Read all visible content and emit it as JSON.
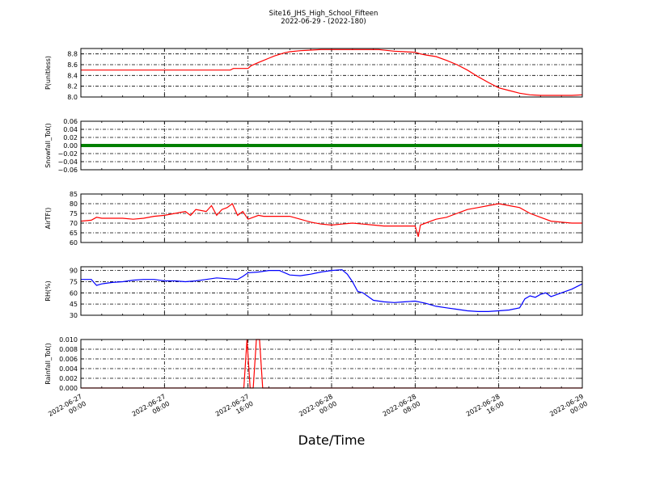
{
  "title_line1": "Site16_JHS_High_School_Fifteen",
  "title_line2": "2022-06-29 - (2022-180)",
  "xlabel": "Date/Time",
  "x_ticks": [
    "2022-06-27\n00:00",
    "2022-06-27\n08:00",
    "2022-06-27\n16:00",
    "2022-06-28\n00:00",
    "2022-06-28\n08:00",
    "2022-06-28\n16:00",
    "2022-06-29\n00:00"
  ],
  "chart_data": [
    {
      "type": "line",
      "ylabel": "P(unitless)",
      "ylim": [
        8.0,
        8.9
      ],
      "yticks": [
        "8.0",
        "8.2",
        "8.4",
        "8.6",
        "8.8"
      ],
      "ytick_values": [
        8.0,
        8.2,
        8.4,
        8.6,
        8.8
      ],
      "color": "#ff0000",
      "grid": true,
      "x_hours": [
        0,
        14.3,
        14.6,
        16,
        16.3,
        17,
        17.5,
        18,
        18.5,
        19,
        19.5,
        20,
        21,
        22,
        23,
        24,
        25,
        26,
        27,
        28.5,
        30,
        31,
        32,
        32.5,
        33,
        34,
        35,
        36,
        37,
        38,
        39,
        40,
        41,
        42,
        43,
        44,
        45,
        46,
        47,
        48
      ],
      "values": [
        8.5,
        8.5,
        8.53,
        8.53,
        8.58,
        8.64,
        8.68,
        8.72,
        8.76,
        8.79,
        8.82,
        8.84,
        8.86,
        8.87,
        8.88,
        8.88,
        8.88,
        8.88,
        8.88,
        8.88,
        8.85,
        8.84,
        8.83,
        8.8,
        8.78,
        8.75,
        8.68,
        8.6,
        8.5,
        8.38,
        8.27,
        8.17,
        8.12,
        8.07,
        8.04,
        8.03,
        8.03,
        8.03,
        8.03,
        8.04
      ]
    },
    {
      "type": "line",
      "ylabel": "Snowfall_Tot()",
      "ylim": [
        -0.06,
        0.06
      ],
      "yticks": [
        "−0.06",
        "−0.04",
        "−0.02",
        "0.00",
        "0.02",
        "0.04",
        "0.06"
      ],
      "ytick_values": [
        -0.06,
        -0.04,
        -0.02,
        0.0,
        0.02,
        0.04,
        0.06
      ],
      "color": "#008000",
      "grid": true,
      "x_hours": [
        0,
        48
      ],
      "values": [
        0,
        0
      ]
    },
    {
      "type": "line",
      "ylabel": "AirTF()",
      "ylim": [
        60,
        85
      ],
      "yticks": [
        "60",
        "65",
        "70",
        "75",
        "80",
        "85"
      ],
      "ytick_values": [
        60,
        65,
        70,
        75,
        80,
        85
      ],
      "color": "#ff0000",
      "grid": true,
      "x_hours": [
        0,
        1,
        1.5,
        2,
        3,
        4,
        5,
        6,
        7,
        8,
        9,
        10,
        10.5,
        11,
        12,
        12.5,
        13,
        13.5,
        14,
        14.5,
        15,
        15.5,
        16,
        16.5,
        17,
        17.5,
        18,
        19,
        20,
        21,
        22,
        23,
        24,
        25,
        26,
        27,
        28,
        29,
        30,
        31,
        32,
        32.3,
        32.5,
        33,
        33.5,
        34,
        35,
        36,
        36.5,
        37,
        38,
        39,
        40,
        41,
        42,
        43,
        44,
        45,
        46,
        47,
        48
      ],
      "values": [
        71,
        71.5,
        73,
        72.5,
        72.5,
        72.5,
        72,
        72.5,
        73.5,
        74,
        75,
        76,
        74,
        77,
        76,
        79,
        74,
        77,
        78,
        80,
        74,
        76,
        72,
        73,
        74,
        73.5,
        73.5,
        73.5,
        73.5,
        72,
        70.5,
        69.5,
        69,
        69.5,
        70,
        69.5,
        69,
        68.5,
        68.5,
        68.5,
        68.5,
        63,
        69,
        70,
        71,
        72,
        73,
        75,
        76,
        77,
        78,
        79,
        80,
        79,
        78,
        75,
        73,
        71,
        70.5,
        70,
        70
      ]
    },
    {
      "type": "line",
      "ylabel": "RH(%)",
      "ylim": [
        30,
        95
      ],
      "yticks": [
        "30",
        "45",
        "60",
        "75",
        "90"
      ],
      "ytick_values": [
        30,
        45,
        60,
        75,
        90
      ],
      "color": "#0000ff",
      "grid": true,
      "x_hours": [
        0,
        1,
        1.5,
        2,
        3,
        4,
        5,
        6,
        7,
        8,
        9,
        10,
        11,
        12,
        13,
        14,
        15,
        15.5,
        16,
        17,
        18,
        19,
        20,
        21,
        22,
        23,
        24,
        25,
        25.5,
        26,
        26.5,
        27,
        28,
        29,
        30,
        31,
        32,
        33,
        34,
        35,
        36,
        37,
        38,
        39,
        40,
        41,
        42,
        42.5,
        43,
        43.5,
        44,
        44.5,
        45,
        46,
        47,
        48
      ],
      "values": [
        78,
        78,
        70,
        72,
        74,
        75,
        77,
        78,
        78,
        76,
        76,
        75,
        76,
        78,
        80,
        79,
        78,
        82,
        87,
        88,
        90,
        90,
        84,
        83,
        85,
        88,
        90,
        91,
        85,
        75,
        62,
        60,
        50,
        48,
        47,
        48,
        49,
        46,
        42,
        40,
        38,
        36,
        35,
        35,
        36,
        37,
        40,
        52,
        56,
        54,
        58,
        60,
        55,
        60,
        65,
        72
      ]
    },
    {
      "type": "line",
      "ylabel": "Rainfall_Tot()",
      "ylim": [
        0.0,
        0.01
      ],
      "yticks": [
        "0.000",
        "0.002",
        "0.004",
        "0.006",
        "0.008",
        "0.010"
      ],
      "ytick_values": [
        0.0,
        0.002,
        0.004,
        0.006,
        0.008,
        0.01
      ],
      "color": "#ff0000",
      "grid": true,
      "x_hours": [
        0,
        15.6,
        15.9,
        16.2,
        16.5,
        16.8,
        17.1,
        17.4,
        48
      ],
      "values": [
        0,
        0,
        0.01,
        0,
        0,
        0.01,
        0.01,
        0,
        0
      ]
    }
  ]
}
